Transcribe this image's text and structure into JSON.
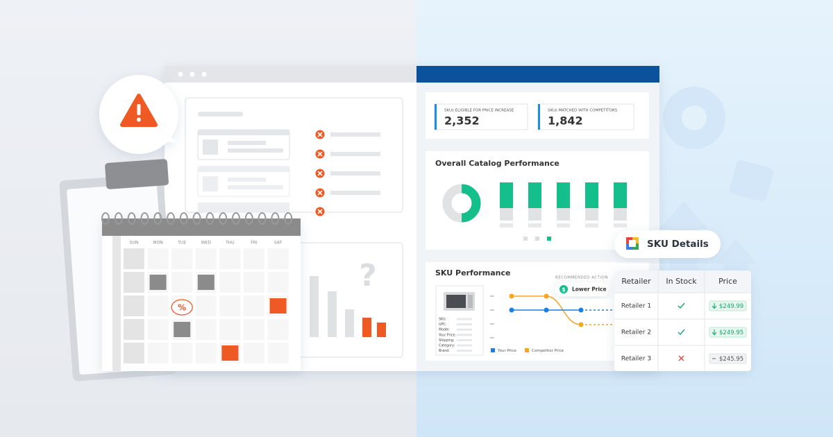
{
  "calendar": {
    "days": [
      "SUN",
      "MON",
      "TUE",
      "WED",
      "THU",
      "FRI",
      "SAT"
    ],
    "badge": "%"
  },
  "question_mark": "?",
  "stats": [
    {
      "label": "SKUs ELIGIBLE FOR PRICE INCREASE",
      "value": "2,352"
    },
    {
      "label": "SKUs MATCHED WITH COMPETITORS",
      "value": "1,842"
    }
  ],
  "catalog_performance": {
    "title": "Overall Catalog Performance"
  },
  "sku_performance": {
    "title": "SKU Performance",
    "recommended_action_label": "RECOMMENDED ACTION",
    "action_icon": "$",
    "recommended_action": "Lower Price",
    "fields": [
      "SKU:",
      "UPC:",
      "Model:",
      "Your Price:",
      "Shipping:",
      "Category:",
      "Brand:"
    ],
    "legend": [
      "Your Price",
      "Competitor Price"
    ]
  },
  "sku_details": {
    "title": "SKU Details",
    "columns": [
      "Retailer",
      "In Stock",
      "Price"
    ],
    "rows": [
      [
        "Retailer 1",
        "$249.99"
      ],
      [
        "Retailer 2",
        "$249.95"
      ],
      [
        "Retailer 3",
        "$245.95"
      ]
    ]
  }
}
